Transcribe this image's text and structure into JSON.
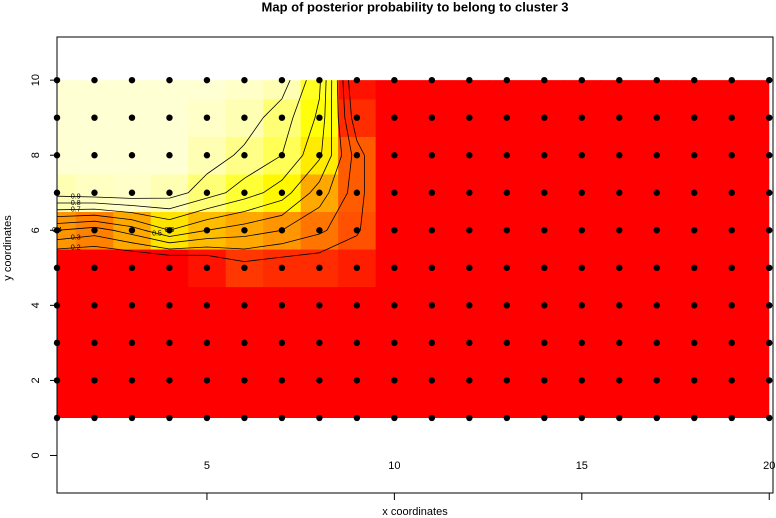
{
  "chart_data": {
    "type": "heatmap",
    "title": "Map of posterior probability to belong to cluster  3",
    "x_label": "x coordinates",
    "y_label": "y coordinates",
    "grid_x": [
      1,
      2,
      3,
      4,
      5,
      6,
      7,
      8,
      9,
      10,
      11,
      12,
      13,
      14,
      15,
      16,
      17,
      18,
      19,
      20
    ],
    "grid_y": [
      1,
      2,
      3,
      4,
      5,
      6,
      7,
      8,
      9,
      10
    ],
    "z": [
      [
        0,
        0,
        0,
        0,
        0,
        0,
        0,
        0,
        0,
        0,
        0,
        0,
        0,
        0,
        0,
        0,
        0,
        0,
        0,
        0
      ],
      [
        0,
        0,
        0,
        0,
        0,
        0,
        0,
        0,
        0,
        0,
        0,
        0,
        0,
        0,
        0,
        0,
        0,
        0,
        0,
        0
      ],
      [
        0,
        0,
        0,
        0,
        0,
        0,
        0,
        0,
        0,
        0,
        0,
        0,
        0,
        0,
        0,
        0,
        0,
        0,
        0,
        0
      ],
      [
        0,
        0,
        0,
        0,
        0,
        0,
        0,
        0,
        0,
        0,
        0,
        0,
        0,
        0,
        0,
        0,
        0,
        0,
        0,
        0
      ],
      [
        0,
        0,
        0,
        0,
        0.05,
        0.15,
        0.12,
        0.12,
        0.08,
        0,
        0,
        0,
        0,
        0,
        0,
        0,
        0,
        0,
        0,
        0
      ],
      [
        0.4,
        0.35,
        0.45,
        0.6,
        0.5,
        0.45,
        0.4,
        0.32,
        0.22,
        0,
        0,
        0,
        0,
        0,
        0,
        0,
        0,
        0,
        0,
        0
      ],
      [
        0.95,
        0.97,
        0.98,
        0.95,
        0.85,
        0.75,
        0.65,
        0.45,
        0.25,
        0,
        0,
        0,
        0,
        0,
        0,
        0,
        0,
        0,
        0,
        0
      ],
      [
        1,
        1,
        1,
        1,
        0.95,
        0.88,
        0.8,
        0.62,
        0.25,
        0,
        0,
        0,
        0,
        0,
        0,
        0,
        0,
        0,
        0,
        0
      ],
      [
        1,
        1,
        1,
        1,
        0.98,
        0.95,
        0.85,
        0.68,
        0.12,
        0,
        0,
        0,
        0,
        0,
        0,
        0,
        0,
        0,
        0,
        0
      ],
      [
        1,
        1,
        1,
        1,
        1,
        0.98,
        0.95,
        0.72,
        0.05,
        0,
        0,
        0,
        0,
        0,
        0,
        0,
        0,
        0,
        0,
        0
      ]
    ],
    "colormap": [
      "#ff0000",
      "#ff7a00",
      "#ffff00",
      "#ffffd4"
    ],
    "contour_levels": [
      0.2,
      0.3,
      0.4,
      0.5,
      0.6,
      0.7,
      0.8,
      0.9
    ],
    "point_color": "#000000",
    "xlim": [
      1,
      20.1
    ],
    "ylim": [
      -1,
      11.15
    ],
    "xticks": [
      5,
      10,
      15,
      20
    ],
    "yticks": [
      0,
      2,
      4,
      6,
      8,
      10
    ]
  }
}
